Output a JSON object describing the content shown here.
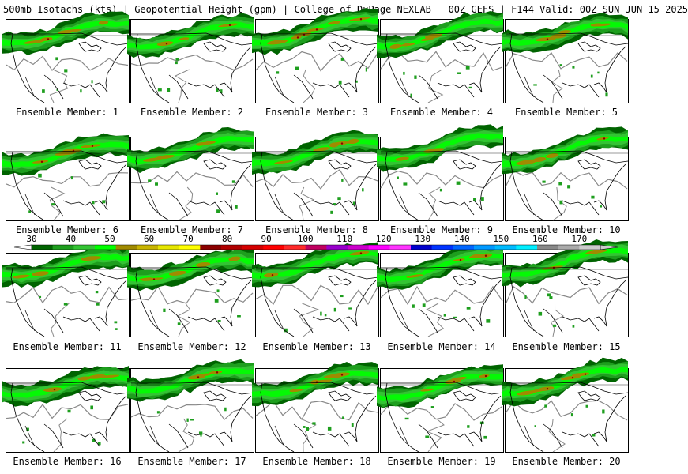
{
  "header": {
    "product": "500mb Isotachs (kts)",
    "field": "Geopotential Height (gpm)",
    "source": "College of DuPage NEXLAB",
    "run": "00Z GEFS",
    "valid": "F144 Valid: 00Z SUN JUN 15 2025",
    "sep": " | "
  },
  "member_label_prefix": "Ensemble Member: ",
  "members": [
    "1",
    "2",
    "3",
    "4",
    "5",
    "6",
    "7",
    "8",
    "9",
    "10",
    "11",
    "12",
    "13",
    "14",
    "15",
    "16",
    "17",
    "18",
    "19",
    "20"
  ],
  "colorbar": {
    "ticks": [
      "30",
      "40",
      "50",
      "60",
      "70",
      "80",
      "90",
      "100",
      "110",
      "120",
      "130",
      "140",
      "150",
      "160",
      "170"
    ],
    "colors": [
      "#006400",
      "#1e9e1e",
      "#33c433",
      "#00ff00",
      "#a08a00",
      "#c8b400",
      "#e6e600",
      "#ffff00",
      "#8b0000",
      "#b00000",
      "#d40000",
      "#ff0000",
      "#ff2a2a",
      "#c00060",
      "#9900cc",
      "#cc00cc",
      "#ff00ff",
      "#ff33ff",
      "#0000cc",
      "#0033ff",
      "#0066ff",
      "#0099ff",
      "#00bbff",
      "#00eeff",
      "#888888",
      "#aaaaaa",
      "#cccccc"
    ],
    "jet_colors": {
      "dark": "#006400",
      "mid": "#1e9e1e",
      "light": "#33c433",
      "bright": "#00ff00",
      "core": "#a08a00",
      "peak": "#8b0000"
    }
  }
}
